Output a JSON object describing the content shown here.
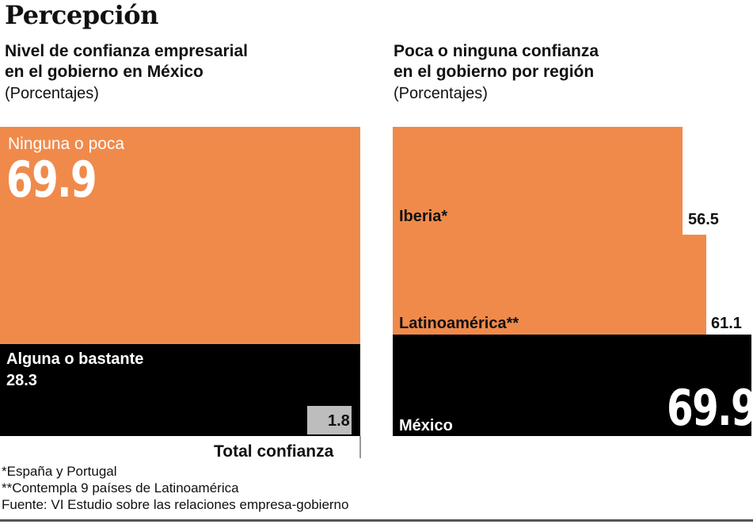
{
  "title": "Percepción",
  "left": {
    "subtitle_lines": [
      "Nivel de confianza empresarial",
      "en el gobierno en México"
    ],
    "unit": "(Porcentajes)",
    "blocks": [
      {
        "label": "Ninguna o poca",
        "value": "69.9",
        "color": "#f08a4b"
      },
      {
        "label": "Alguna o bastante",
        "value": "28.3",
        "color": "#000000"
      },
      {
        "label": "Total confianza",
        "value": "1.8",
        "color": "#bdbdbd"
      }
    ]
  },
  "right": {
    "subtitle_lines": [
      "Poca o ninguna confianza",
      "en el gobierno por región"
    ],
    "unit": "(Porcentajes)",
    "rows": [
      {
        "label": "Iberia*",
        "value": "56.5",
        "color": "#f08a4b"
      },
      {
        "label": "Latinoamérica**",
        "value": "61.1",
        "color": "#f08a4b"
      },
      {
        "label": "México",
        "value": "69.9",
        "color": "#000000"
      }
    ]
  },
  "footnotes": [
    "*España y Portugal",
    "**Contempla 9 países de Latinoamérica",
    "Fuente: VI Estudio sobre las relaciones empresa-gobierno"
  ],
  "chart_data": [
    {
      "type": "area",
      "title": "Nivel de confianza empresarial en el gobierno en México",
      "unit": "(Porcentajes)",
      "categories": [
        "Ninguna o poca",
        "Alguna o bastante",
        "Total confianza"
      ],
      "values": [
        69.9,
        28.3,
        1.8
      ]
    },
    {
      "type": "bar",
      "title": "Poca o ninguna confianza en el gobierno por región",
      "unit": "(Porcentajes)",
      "categories": [
        "Iberia*",
        "Latinoamérica**",
        "México"
      ],
      "values": [
        56.5,
        61.1,
        69.9
      ]
    }
  ]
}
